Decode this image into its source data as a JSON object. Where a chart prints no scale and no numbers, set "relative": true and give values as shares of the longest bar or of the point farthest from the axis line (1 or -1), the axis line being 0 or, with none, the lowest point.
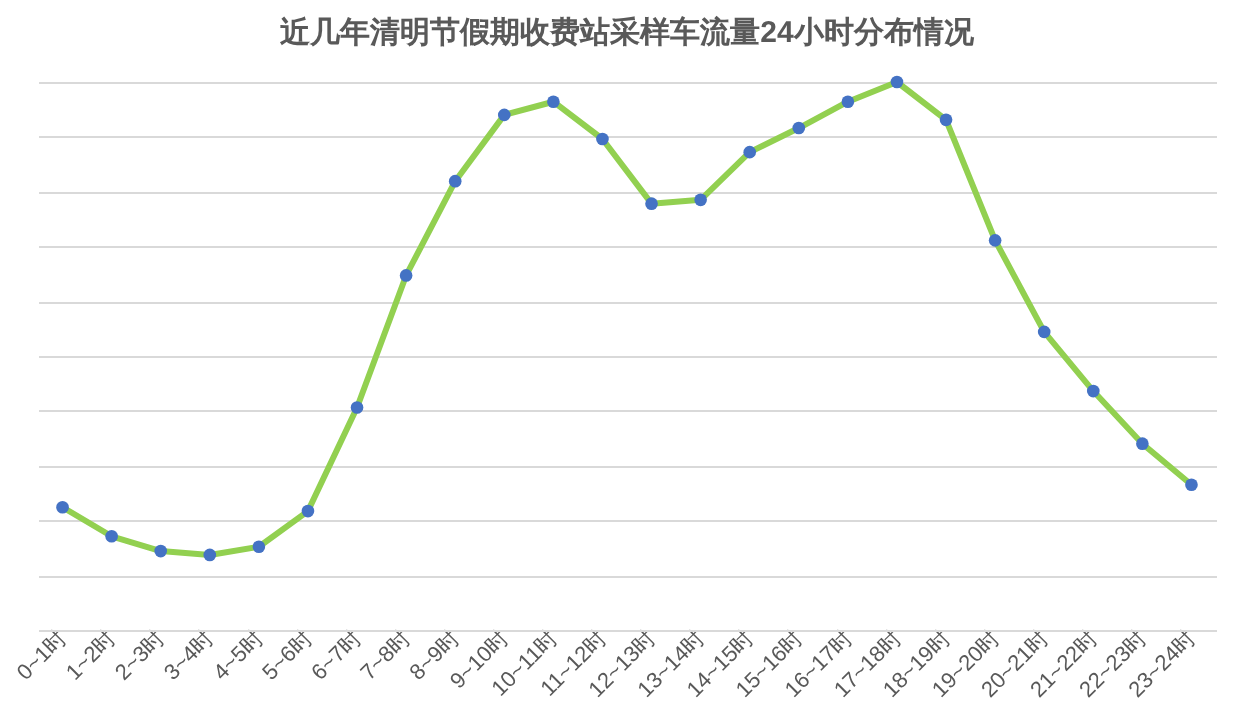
{
  "chart_data": {
    "type": "line",
    "title": "近几年清明节假期收费站采样车流量24小时分布情况",
    "relative": true,
    "grid": "y",
    "marker": "circle",
    "line_style": "solid",
    "categories": [
      "0~1时",
      "1~2时",
      "2~3时",
      "3~4时",
      "4~5时",
      "5~6时",
      "6~7时",
      "7~8时",
      "8~9时",
      "9~10时",
      "10~11时",
      "11~12时",
      "12~13时",
      "13~14时",
      "14~15时",
      "15~16时",
      "16~17时",
      "17~18时",
      "18~19时",
      "19~20时",
      "20~21时",
      "21~22时",
      "22~23时",
      "23~24时"
    ],
    "series": [
      {
        "color": "#92d050",
        "values": [
          0.224,
          0.171,
          0.144,
          0.137,
          0.152,
          0.217,
          0.406,
          0.647,
          0.819,
          0.94,
          0.964,
          0.896,
          0.778,
          0.785,
          0.872,
          0.916,
          0.964,
          1,
          0.931,
          0.711,
          0.544,
          0.436,
          0.34,
          0.265
        ]
      }
    ]
  }
}
